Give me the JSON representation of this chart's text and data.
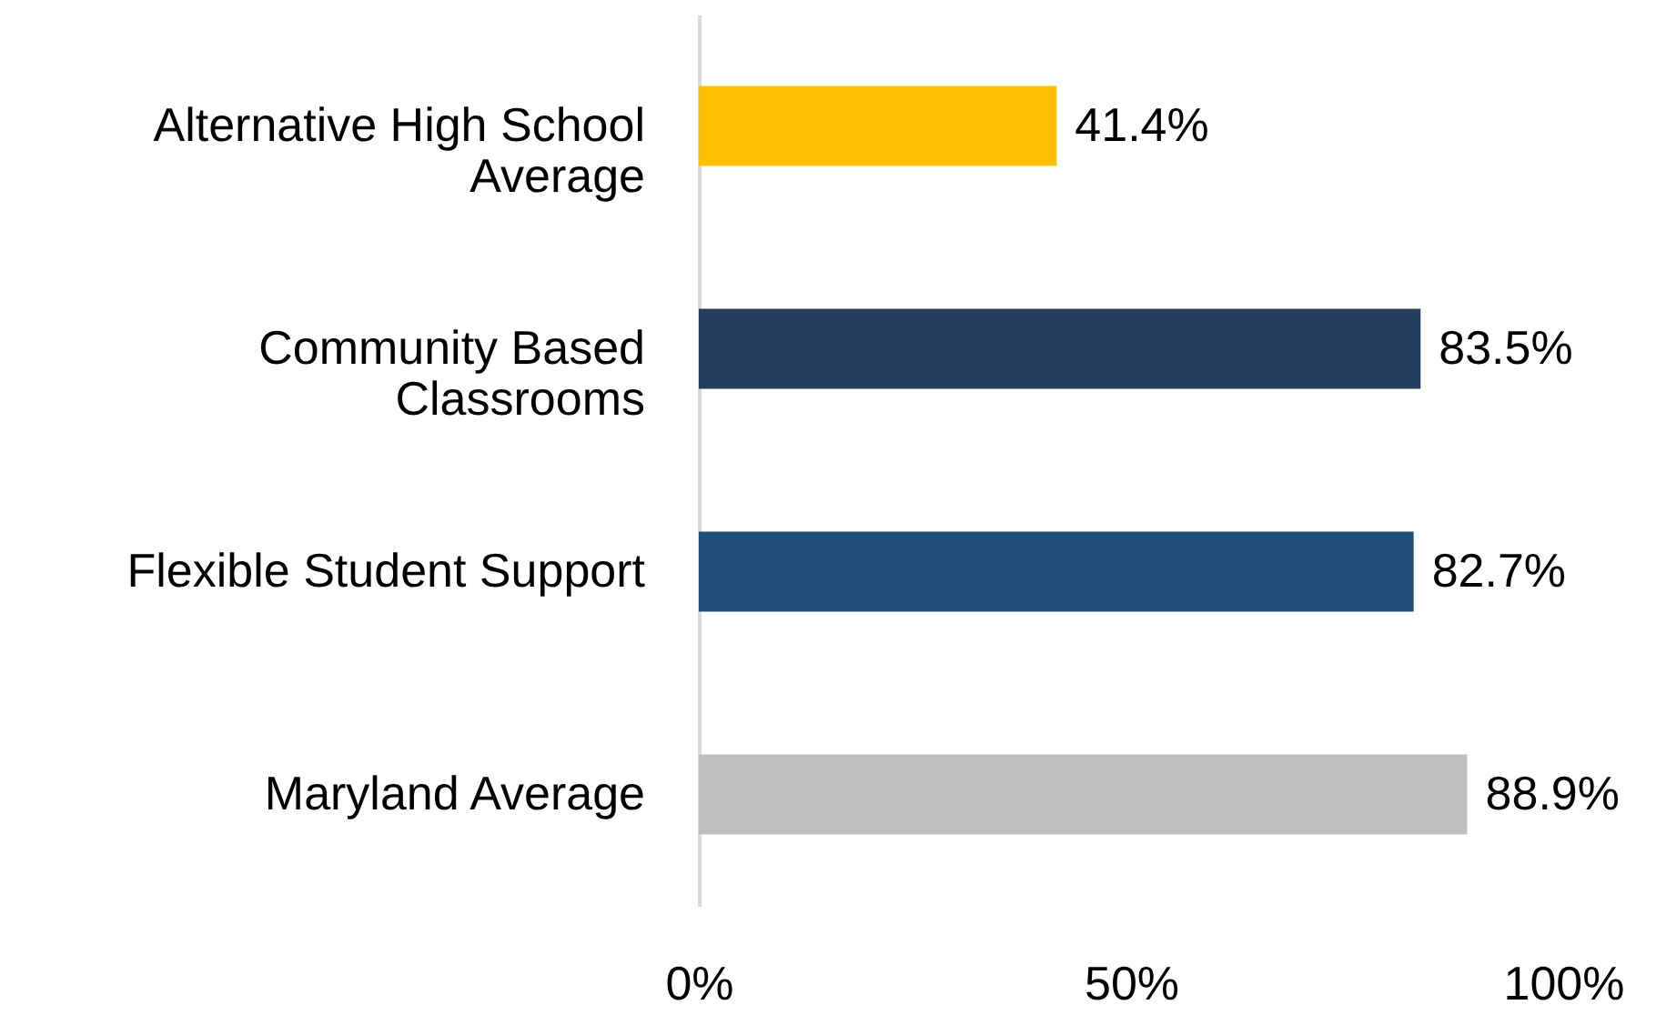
{
  "chart_data": {
    "type": "bar",
    "orientation": "horizontal",
    "categories": [
      "Alternative High School Average",
      "Community Based Classrooms",
      "Flexible Student Support",
      "Maryland Average"
    ],
    "values": [
      41.4,
      83.5,
      82.7,
      88.9
    ],
    "value_labels": [
      "41.4%",
      "83.5%",
      "82.7%",
      "88.9%"
    ],
    "colors": [
      "#ffc000",
      "#243f60",
      "#1f4e79",
      "#bfbfbf"
    ],
    "xlim": [
      0,
      100
    ],
    "xticks": [
      {
        "value": 0,
        "label": "0%"
      },
      {
        "value": 50,
        "label": "50%"
      },
      {
        "value": 100,
        "label": "100%"
      }
    ],
    "grid": false
  }
}
